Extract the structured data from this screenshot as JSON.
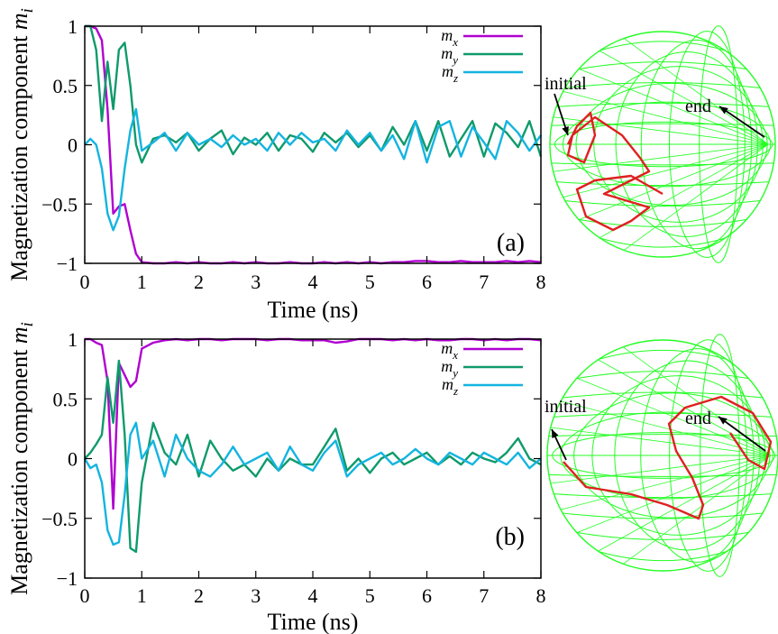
{
  "colors": {
    "mx": "#b000d0",
    "my": "#0f9a6c",
    "mz": "#14b4e0",
    "sphere": "#22ff22",
    "trajectory": "#e02020"
  },
  "legend": {
    "mx": "m_x",
    "my": "m_y",
    "mz": "m_z"
  },
  "sphere_labels": {
    "start": "initial",
    "finish": "end"
  },
  "chart_data": [
    {
      "type": "line",
      "panel_label": "(a)",
      "xlabel": "Time (ns)",
      "ylabel": "Magnetization component m_i",
      "xlim": [
        0,
        8
      ],
      "ylim": [
        -1,
        1
      ],
      "xticks": [
        "0",
        "1",
        "2",
        "3",
        "4",
        "5",
        "6",
        "7",
        "8"
      ],
      "yticks": [
        "−1",
        "−0.5",
        "0",
        "0.5",
        "1"
      ],
      "grid": false,
      "legend_position": "top-right",
      "x": [
        0,
        0.1,
        0.2,
        0.3,
        0.4,
        0.5,
        0.6,
        0.7,
        0.8,
        0.9,
        1.0,
        1.2,
        1.4,
        1.6,
        1.8,
        2.0,
        2.2,
        2.4,
        2.6,
        2.8,
        3.0,
        3.2,
        3.4,
        3.6,
        3.8,
        4.0,
        4.2,
        4.4,
        4.6,
        4.8,
        5.0,
        5.2,
        5.4,
        5.6,
        5.8,
        6.0,
        6.2,
        6.4,
        6.6,
        6.8,
        7.0,
        7.2,
        7.4,
        7.6,
        7.8,
        8.0
      ],
      "series": [
        {
          "name": "m_x",
          "values": [
            1.0,
            1.0,
            0.98,
            0.88,
            0.3,
            -0.58,
            -0.52,
            -0.5,
            -0.72,
            -0.92,
            -0.99,
            -1.0,
            -1.0,
            -0.99,
            -1.0,
            -0.99,
            -1.0,
            -1.0,
            -0.99,
            -1.0,
            -0.99,
            -1.0,
            -1.0,
            -0.99,
            -1.0,
            -1.0,
            -0.99,
            -1.0,
            -0.99,
            -1.0,
            -0.99,
            -1.0,
            -0.99,
            -0.99,
            -0.98,
            -0.98,
            -0.99,
            -0.99,
            -0.98,
            -0.99,
            -0.99,
            -0.99,
            -0.98,
            -0.99,
            -0.98,
            -0.99
          ]
        },
        {
          "name": "m_y",
          "values": [
            1.0,
            1.0,
            0.8,
            0.2,
            0.7,
            0.3,
            0.8,
            0.86,
            0.5,
            0.0,
            -0.15,
            0.05,
            0.08,
            0.02,
            0.1,
            -0.05,
            0.05,
            0.12,
            -0.08,
            0.06,
            0.0,
            0.1,
            -0.05,
            0.08,
            0.05,
            -0.06,
            0.1,
            0.02,
            0.1,
            -0.02,
            0.08,
            -0.05,
            0.15,
            0.0,
            0.2,
            -0.05,
            0.2,
            -0.1,
            0.05,
            0.2,
            -0.1,
            0.18,
            0.1,
            -0.02,
            0.2,
            -0.1
          ]
        },
        {
          "name": "m_z",
          "values": [
            0.0,
            0.05,
            0.0,
            -0.2,
            -0.58,
            -0.72,
            -0.6,
            -0.2,
            0.12,
            0.3,
            -0.05,
            0.02,
            0.1,
            -0.05,
            0.1,
            0.0,
            0.05,
            -0.02,
            0.08,
            0.0,
            0.05,
            -0.05,
            0.1,
            0.0,
            0.1,
            0.02,
            0.05,
            -0.05,
            0.12,
            0.0,
            0.1,
            -0.05,
            0.08,
            -0.12,
            0.2,
            -0.15,
            0.15,
            0.2,
            -0.1,
            0.15,
            0.02,
            -0.12,
            0.2,
            0.1,
            -0.05,
            0.08
          ]
        }
      ]
    },
    {
      "type": "line",
      "panel_label": "(b)",
      "xlabel": "Time (ns)",
      "ylabel": "Magnetization component m_i",
      "xlim": [
        0,
        8
      ],
      "ylim": [
        -1,
        1
      ],
      "xticks": [
        "0",
        "1",
        "2",
        "3",
        "4",
        "5",
        "6",
        "7",
        "8"
      ],
      "yticks": [
        "−1",
        "−0.5",
        "0",
        "0.5",
        "1"
      ],
      "grid": false,
      "legend_position": "top-right",
      "x": [
        0,
        0.1,
        0.2,
        0.3,
        0.4,
        0.5,
        0.6,
        0.7,
        0.8,
        0.9,
        1.0,
        1.2,
        1.4,
        1.6,
        1.8,
        2.0,
        2.2,
        2.4,
        2.6,
        2.8,
        3.0,
        3.2,
        3.4,
        3.6,
        3.8,
        4.0,
        4.2,
        4.4,
        4.6,
        4.8,
        5.0,
        5.2,
        5.4,
        5.6,
        5.8,
        6.0,
        6.2,
        6.4,
        6.6,
        6.8,
        7.0,
        7.2,
        7.4,
        7.6,
        7.8,
        8.0
      ],
      "series": [
        {
          "name": "m_x",
          "values": [
            1.0,
            1.0,
            0.97,
            0.95,
            0.65,
            -0.42,
            0.8,
            0.7,
            0.6,
            0.65,
            0.92,
            0.97,
            0.99,
            1.0,
            0.99,
            1.0,
            1.0,
            0.99,
            1.0,
            1.0,
            1.0,
            0.99,
            1.0,
            1.0,
            0.99,
            0.99,
            0.99,
            0.97,
            0.98,
            1.0,
            1.0,
            1.0,
            0.99,
            1.0,
            0.99,
            1.0,
            0.99,
            0.99,
            1.0,
            1.0,
            0.99,
            1.0,
            0.99,
            1.0,
            1.0,
            0.99
          ]
        },
        {
          "name": "m_y",
          "values": [
            0.0,
            0.05,
            0.12,
            0.2,
            0.68,
            0.3,
            0.82,
            0.2,
            -0.75,
            -0.78,
            -0.2,
            0.3,
            0.05,
            -0.05,
            0.2,
            -0.15,
            0.15,
            0.0,
            -0.1,
            -0.05,
            -0.15,
            0.0,
            -0.1,
            0.0,
            -0.05,
            -0.05,
            0.1,
            0.25,
            -0.1,
            0.0,
            -0.12,
            0.0,
            0.05,
            -0.05,
            0.0,
            0.05,
            -0.05,
            0.02,
            -0.05,
            0.05,
            0.0,
            -0.03,
            0.05,
            0.17,
            0.0,
            -0.05
          ]
        },
        {
          "name": "m_z",
          "values": [
            0.0,
            -0.08,
            -0.05,
            -0.2,
            -0.6,
            -0.72,
            -0.7,
            -0.3,
            0.2,
            0.3,
            0.0,
            0.15,
            -0.15,
            0.2,
            0.0,
            -0.1,
            -0.15,
            -0.05,
            0.1,
            -0.05,
            0.0,
            0.05,
            -0.1,
            0.1,
            -0.05,
            -0.1,
            0.05,
            0.15,
            -0.15,
            -0.05,
            0.0,
            0.05,
            -0.05,
            0.0,
            0.08,
            0.0,
            -0.05,
            0.05,
            0.0,
            -0.05,
            0.05,
            0.0,
            -0.05,
            0.05,
            -0.08,
            0.0
          ]
        }
      ]
    }
  ]
}
